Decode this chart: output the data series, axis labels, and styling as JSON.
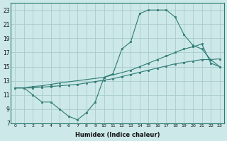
{
  "xlabel": "Humidex (Indice chaleur)",
  "background_color": "#cce8e8",
  "grid_color": "#aacccc",
  "line_color": "#2e7b74",
  "xlim": [
    -0.5,
    23.5
  ],
  "ylim": [
    7,
    24
  ],
  "yticks": [
    7,
    9,
    11,
    13,
    15,
    17,
    19,
    21,
    23
  ],
  "xticks": [
    0,
    1,
    2,
    3,
    4,
    5,
    6,
    7,
    8,
    9,
    10,
    11,
    12,
    13,
    14,
    15,
    16,
    17,
    18,
    19,
    20,
    21,
    22,
    23
  ],
  "line1_x": [
    0,
    1,
    2,
    3,
    4,
    5,
    6,
    7,
    8,
    9,
    10,
    11,
    12,
    13,
    14,
    15,
    16,
    17,
    18,
    19,
    20,
    21,
    22,
    23
  ],
  "line1_y": [
    12,
    12,
    11,
    10,
    10,
    9,
    8,
    7.5,
    8.5,
    10,
    13.5,
    14,
    17.5,
    18.5,
    22.5,
    23,
    23,
    23,
    22,
    19.5,
    18,
    17.5,
    16,
    15
  ],
  "line2_x": [
    0,
    1,
    2,
    3,
    4,
    5,
    10,
    13,
    14,
    15,
    16,
    17,
    18,
    19,
    20,
    21,
    22,
    23
  ],
  "line2_y": [
    12,
    12,
    12.2,
    12.3,
    12.5,
    12.7,
    13.5,
    14.5,
    15,
    15.5,
    16,
    16.5,
    17,
    17.5,
    17.8,
    18.2,
    15.5,
    15
  ],
  "line3_x": [
    0,
    1,
    2,
    3,
    4,
    5,
    6,
    7,
    8,
    9,
    10,
    11,
    12,
    13,
    14,
    15,
    16,
    17,
    18,
    19,
    20,
    21,
    22,
    23
  ],
  "line3_y": [
    12,
    12,
    12,
    12.1,
    12.2,
    12.3,
    12.4,
    12.5,
    12.7,
    12.9,
    13.1,
    13.3,
    13.6,
    13.9,
    14.2,
    14.5,
    14.8,
    15.1,
    15.4,
    15.6,
    15.8,
    16.0,
    16.0,
    16.1
  ]
}
